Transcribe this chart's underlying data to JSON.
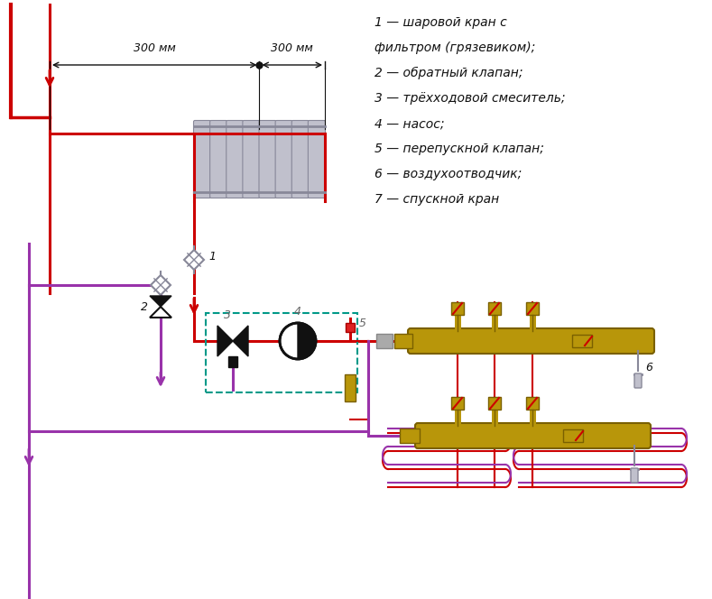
{
  "legend_lines": [
    "1 — шаровой кран с",
    "фильтром (грязевиком);",
    "2 — обратный клапан;",
    "3 — трёхходовой смеситель;",
    "4 — насос;",
    "5 — перепускной клапан;",
    "6 — воздухоотводчик;",
    "7 — спускной кран"
  ],
  "dim_300mm": "300 мм",
  "bg": "#ffffff",
  "red": "#cc0000",
  "purple": "#9933aa",
  "gold": "#b8960a",
  "gold_dark": "#7a6000",
  "gray": "#c0c0cc",
  "gray_dark": "#888899",
  "teal": "#009988",
  "black": "#111111",
  "white": "#ffffff",
  "lw_main": 2.2,
  "lw_thin": 1.5
}
